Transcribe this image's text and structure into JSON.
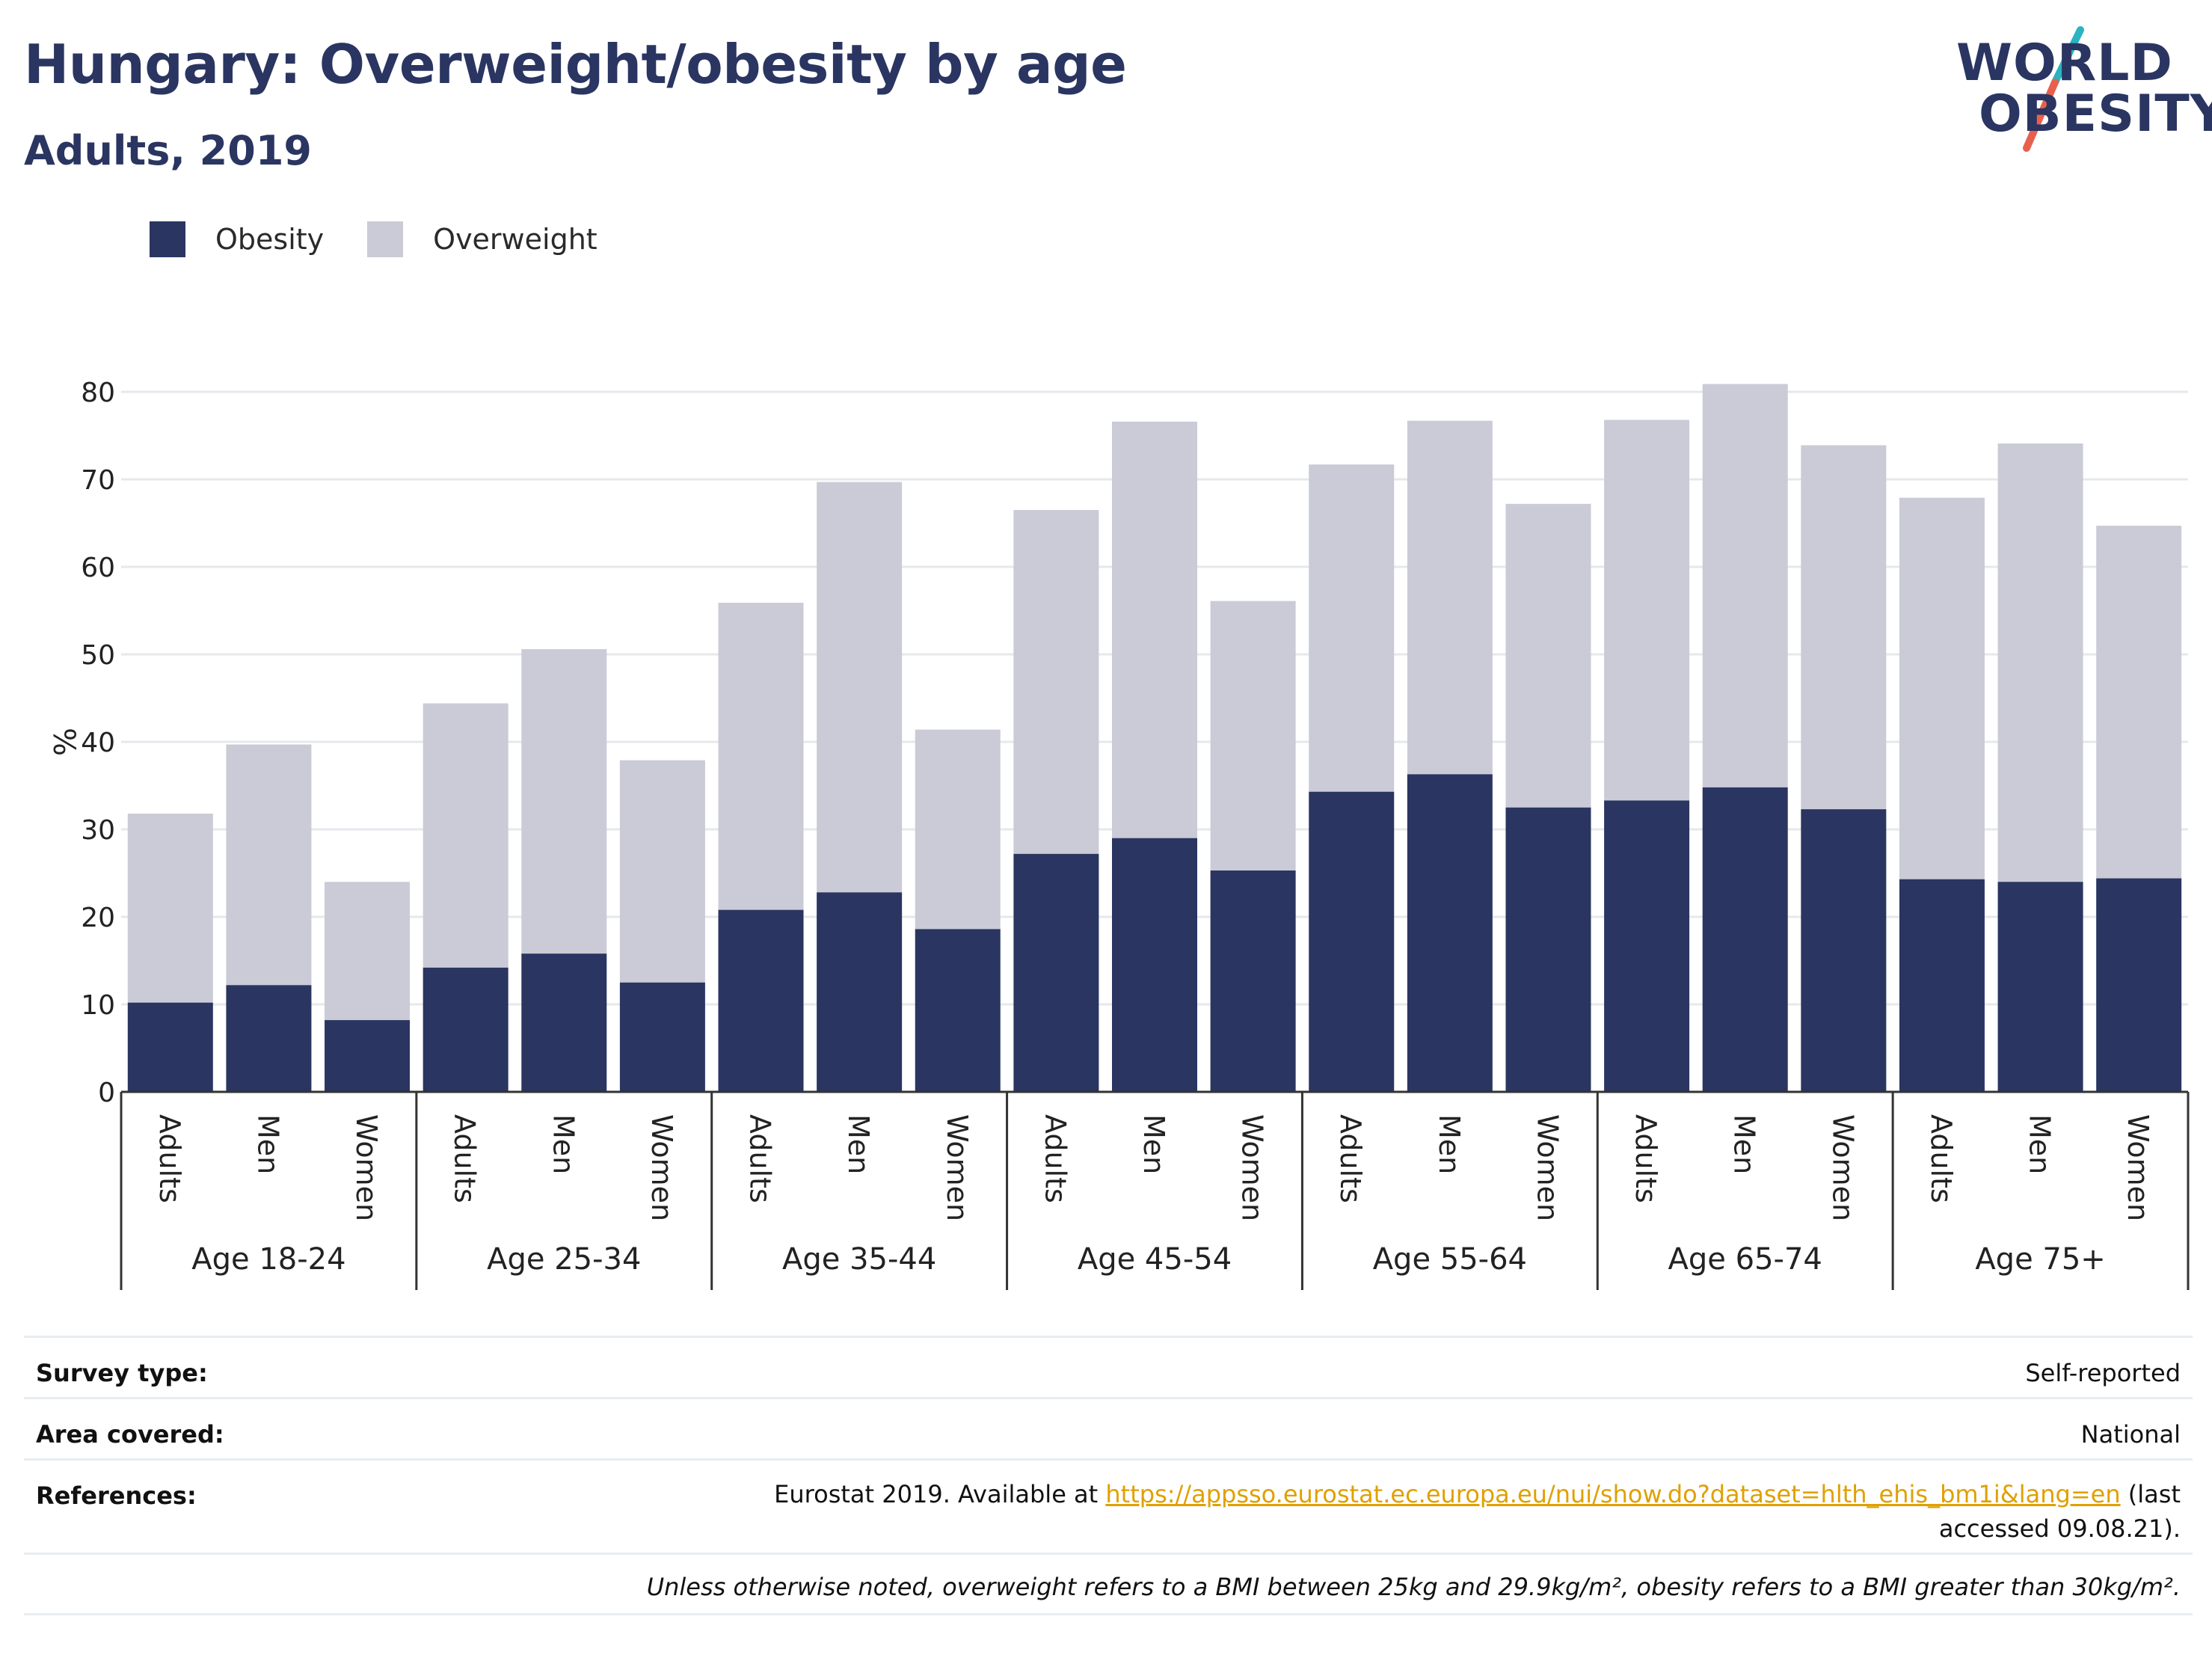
{
  "header": {
    "title": "Hungary: Overweight/obesity by age",
    "subtitle": "Adults, 2019",
    "logo_line1": "WORLD",
    "logo_line2": "OBESITY"
  },
  "colors": {
    "obesity": "#2a3561",
    "overweight": "#cacbd7",
    "text": "#2a3561",
    "link": "#e0a000",
    "logo_slash_teal": "#2ab3c0",
    "logo_slash_red": "#e8604c"
  },
  "chart_data": {
    "type": "bar",
    "stacked": true,
    "ylabel": "%",
    "ylim": [
      0,
      80
    ],
    "yticks": [
      0,
      10,
      20,
      30,
      40,
      50,
      60,
      70,
      80
    ],
    "grid": true,
    "legend": {
      "position": "top-left",
      "entries": [
        "Obesity",
        "Overweight"
      ]
    },
    "groups": [
      "Age 18-24",
      "Age 25-34",
      "Age 35-44",
      "Age 45-54",
      "Age 55-64",
      "Age 65-74",
      "Age 75+"
    ],
    "subcategories": [
      "Adults",
      "Men",
      "Women"
    ],
    "series": [
      {
        "name": "Obesity",
        "values": [
          10.2,
          12.2,
          8.2,
          14.2,
          15.8,
          12.5,
          20.8,
          22.8,
          18.6,
          27.2,
          29.0,
          25.3,
          34.3,
          36.3,
          32.5,
          33.3,
          34.8,
          32.3,
          24.3,
          24.0,
          24.4
        ]
      },
      {
        "name": "Overweight",
        "values": [
          21.6,
          27.5,
          15.8,
          30.2,
          34.8,
          25.4,
          35.1,
          46.9,
          22.8,
          39.3,
          47.6,
          30.8,
          37.4,
          40.4,
          34.7,
          43.5,
          46.1,
          41.6,
          43.6,
          50.1,
          40.3
        ]
      }
    ]
  },
  "info": {
    "survey_label": "Survey type:",
    "survey_value": "Self-reported",
    "area_label": "Area covered:",
    "area_value": "National",
    "references_label": "References:",
    "references_prefix": "Eurostat 2019. Available at ",
    "references_link": "https://appsso.eurostat.ec.europa.eu/nui/show.do?dataset=hlth_ehis_bm1i&lang=en",
    "references_suffix": " (last accessed 09.08.21).",
    "note": "Unless otherwise noted, overweight refers to a BMI between 25kg and 29.9kg/m², obesity refers to a BMI greater than 30kg/m²."
  }
}
